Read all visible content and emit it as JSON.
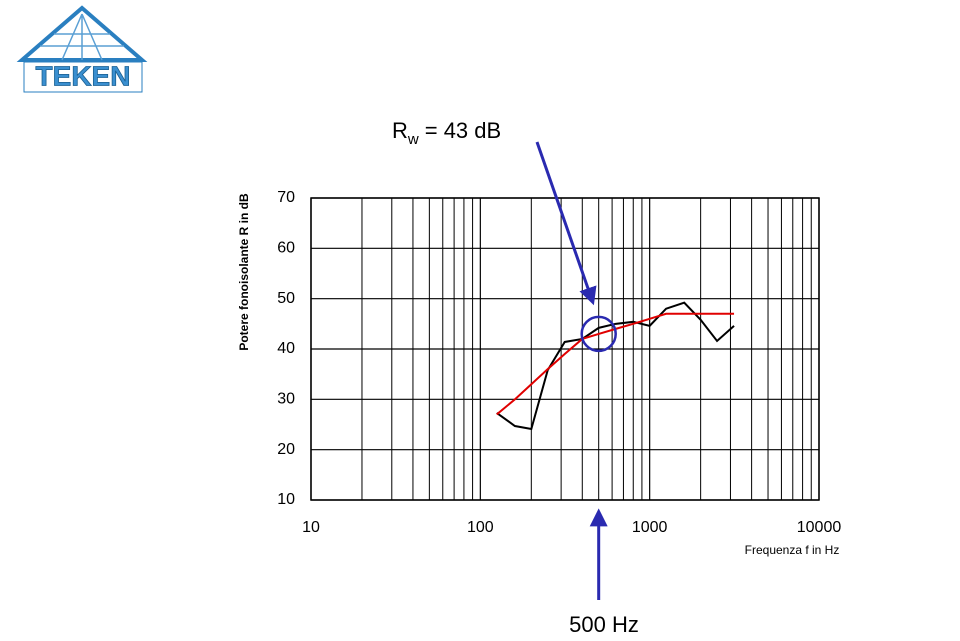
{
  "logo": "TEKEN",
  "chart_data": {
    "type": "line",
    "annotation": {
      "symbol": "R",
      "subscript": "w",
      "text": "= 43 dB",
      "marker_x": 500,
      "marker_y": 43
    },
    "pointer_label": "500 Hz",
    "y_label": "Potere fonoisolante R in dB",
    "x_label": "Frequenza f  in Hz",
    "x": [
      125,
      160,
      200,
      250,
      315,
      400,
      500,
      630,
      800,
      1000,
      1250,
      1600,
      2000,
      2500,
      3150
    ],
    "series": [
      {
        "color": "#000000",
        "values": [
          27.3,
          24.7,
          24.1,
          35.8,
          41.4,
          42,
          44.2,
          45,
          45.4,
          44.6,
          48,
          49.2,
          45.8,
          41.6,
          44.6
        ]
      },
      {
        "color": "#e00000",
        "values": [
          27,
          30,
          33,
          36,
          39,
          42,
          43,
          44,
          45,
          46,
          47,
          47,
          47,
          47,
          47
        ]
      }
    ],
    "xlim": [
      10,
      10000
    ],
    "xticks": [
      10,
      100,
      1000,
      10000
    ],
    "xscale": "log",
    "ylim": [
      10,
      70
    ],
    "yticks": [
      10,
      20,
      30,
      40,
      50,
      60,
      70
    ],
    "grid": true
  }
}
